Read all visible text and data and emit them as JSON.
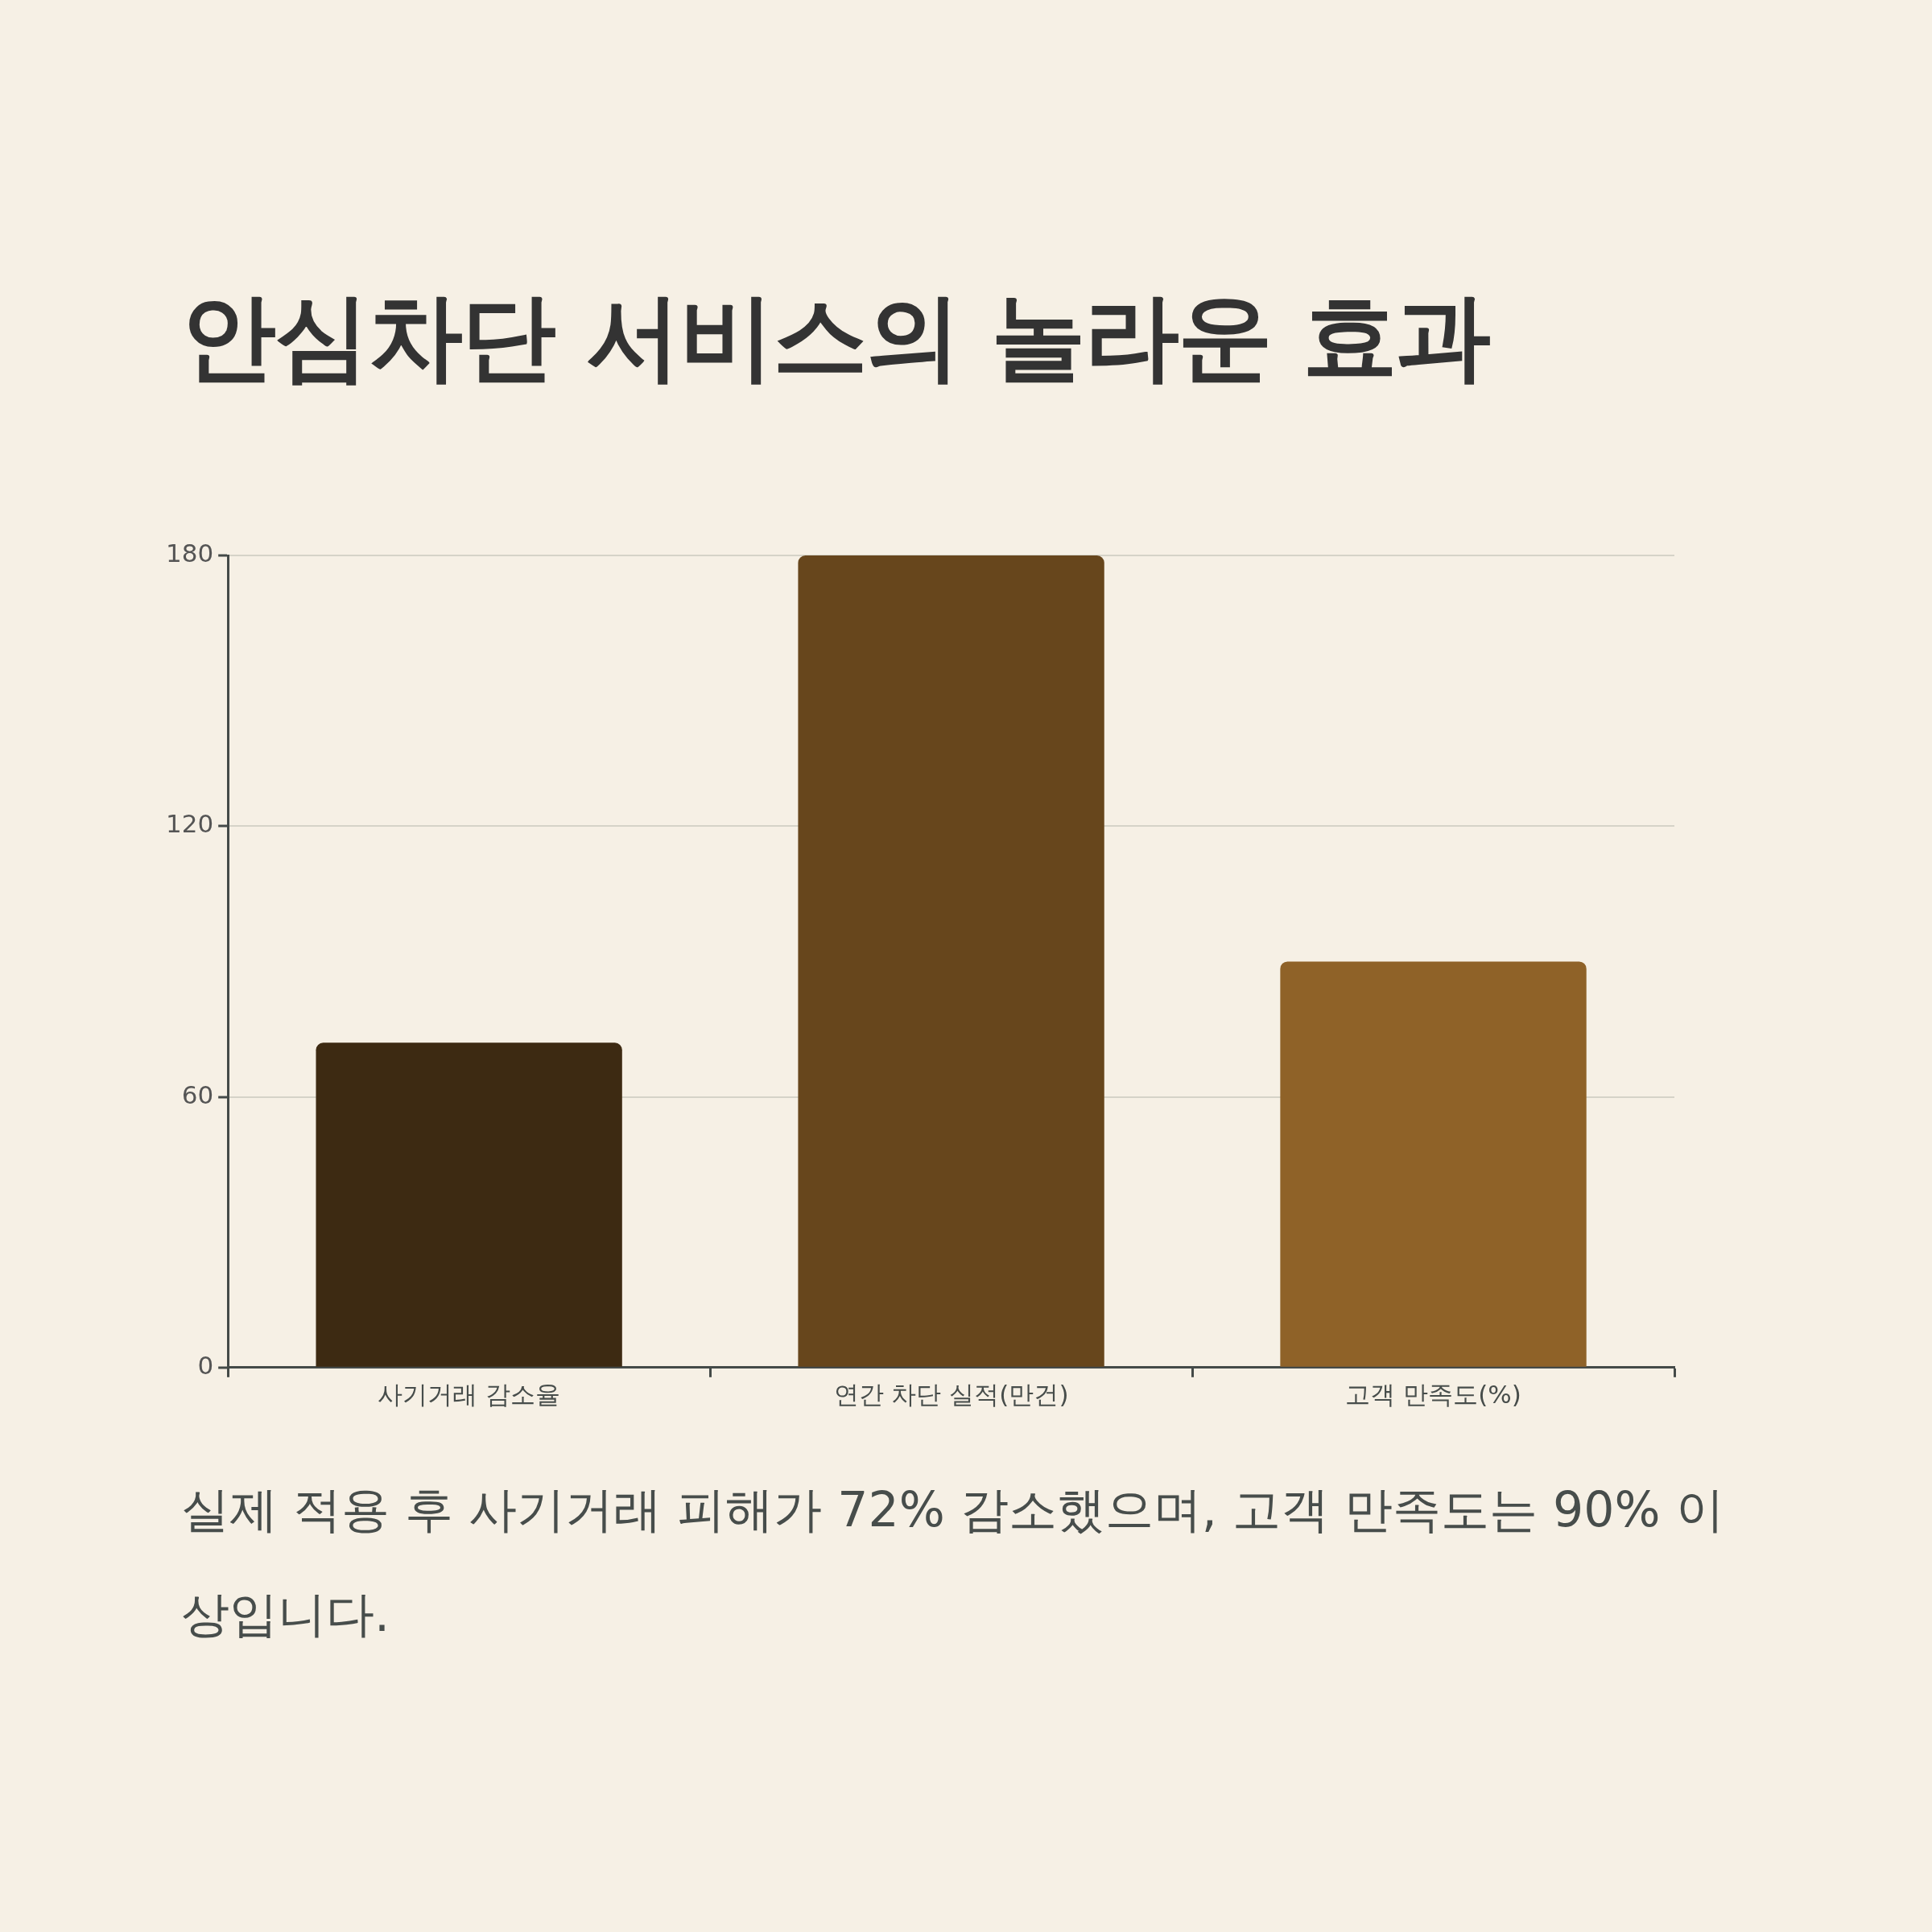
{
  "chart_data": {
    "type": "bar",
    "title": "안심차단 서비스의 놀라운 효과",
    "categories": [
      "사기거래 감소율",
      "연간 차단 실적(만건)",
      "고객 만족도(%)"
    ],
    "values": [
      72,
      180,
      90
    ],
    "colors": [
      "#3d2a12",
      "#67461c",
      "#8f6228"
    ],
    "ylim": [
      0,
      180
    ],
    "yticks": [
      0,
      60,
      120,
      180
    ],
    "grid": "y",
    "legend": false,
    "annotations": [
      "실제 적용 후 사기거래 피해가 72% 감소했으며, 고객 만족도는 90% 이상입니다."
    ]
  }
}
